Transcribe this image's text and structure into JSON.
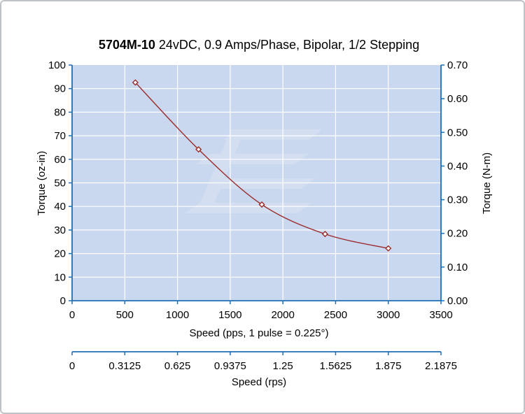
{
  "chart_data": {
    "type": "line",
    "title_bold": "5704M-10",
    "title_rest": " 24vDC, 0.9 Amps/Phase, Bipolar, 1/2 Stepping",
    "xlabel": "Speed (pps, 1 pulse = 0.225°)",
    "ylabel": "Torque (oz-in)",
    "y2label": "Torque (N-m)",
    "x2label": "Speed (rps)",
    "xlim": [
      0,
      3500
    ],
    "ylim": [
      0,
      100
    ],
    "y2lim": [
      0,
      0.7
    ],
    "xticks": [
      "0",
      "500",
      "1000",
      "1500",
      "2000",
      "2500",
      "3000",
      "3500"
    ],
    "yticks": [
      "0",
      "10",
      "20",
      "30",
      "40",
      "50",
      "60",
      "70",
      "80",
      "90",
      "100"
    ],
    "y2ticks": [
      "0.00",
      "0.10",
      "0.20",
      "0.30",
      "0.40",
      "0.50",
      "0.60",
      "0.70"
    ],
    "x2ticks": [
      "0",
      "0.3125",
      "0.625",
      "0.9375",
      "1.25",
      "1.5625",
      "1.875",
      "2.1875"
    ],
    "grid": true,
    "colors": {
      "plot_bg": "#c9d7ef",
      "line": "#9b2b2b",
      "axis": "#1f6fb5",
      "grid": "#ffffff"
    },
    "series": [
      {
        "x": [
          600,
          1200,
          1800,
          2400,
          3000
        ],
        "y": [
          92.6,
          64.2,
          40.8,
          28.3,
          22.2
        ]
      }
    ]
  }
}
